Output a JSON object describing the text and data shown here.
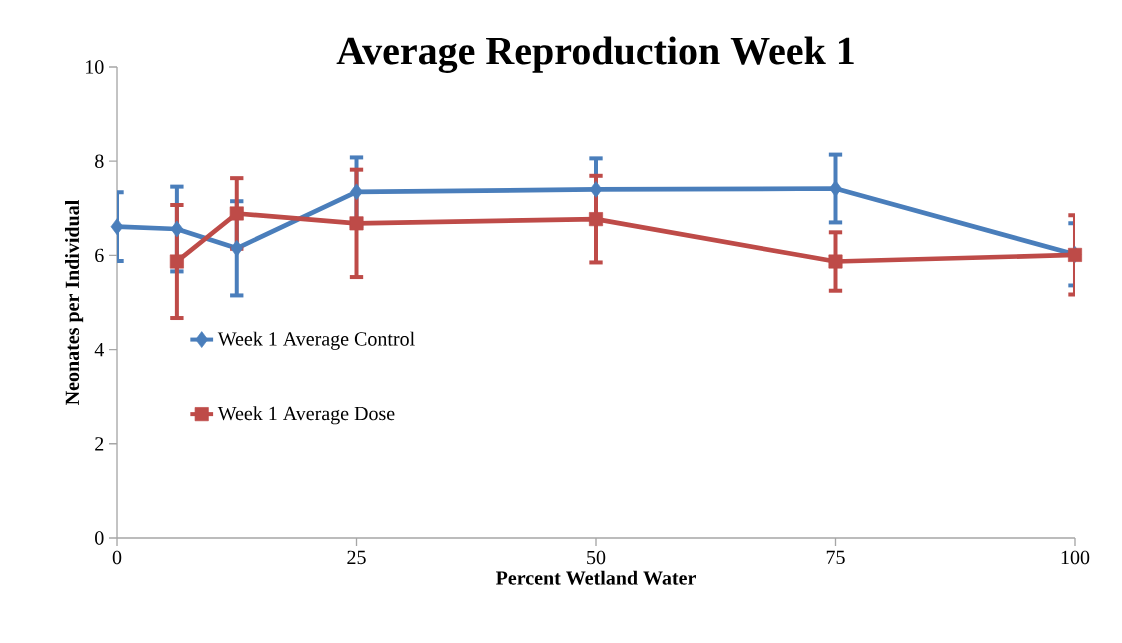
{
  "chart_data": {
    "type": "line",
    "title": "Average Reproduction Week 1",
    "xlabel": "Percent Wetland Water",
    "ylabel": "Neonates per Individual",
    "xlim": [
      0,
      100
    ],
    "xticks": [
      0,
      25,
      50,
      75,
      100
    ],
    "ylim": [
      0,
      10
    ],
    "yticks": [
      0,
      2,
      4,
      6,
      8,
      10
    ],
    "grid": false,
    "legend": "left",
    "series": [
      {
        "name": "Week 1 Average Control",
        "color": "#4a7ebb",
        "marker": "diamond",
        "x": [
          0,
          6.25,
          12.5,
          25,
          50,
          75,
          100
        ],
        "values": [
          6.61,
          6.56,
          6.15,
          7.35,
          7.4,
          7.42,
          6.02
        ],
        "errors": [
          0.73,
          0.9,
          1.0,
          0.73,
          0.66,
          0.72,
          0.66
        ]
      },
      {
        "name": "Week 1 Average Dose",
        "color": "#be4b48",
        "marker": "square",
        "x": [
          6.25,
          12.5,
          25,
          50,
          75,
          100
        ],
        "values": [
          5.87,
          6.89,
          6.68,
          6.77,
          5.87,
          6.01
        ],
        "errors": [
          1.2,
          0.75,
          1.14,
          0.92,
          0.62,
          0.84
        ]
      }
    ]
  }
}
